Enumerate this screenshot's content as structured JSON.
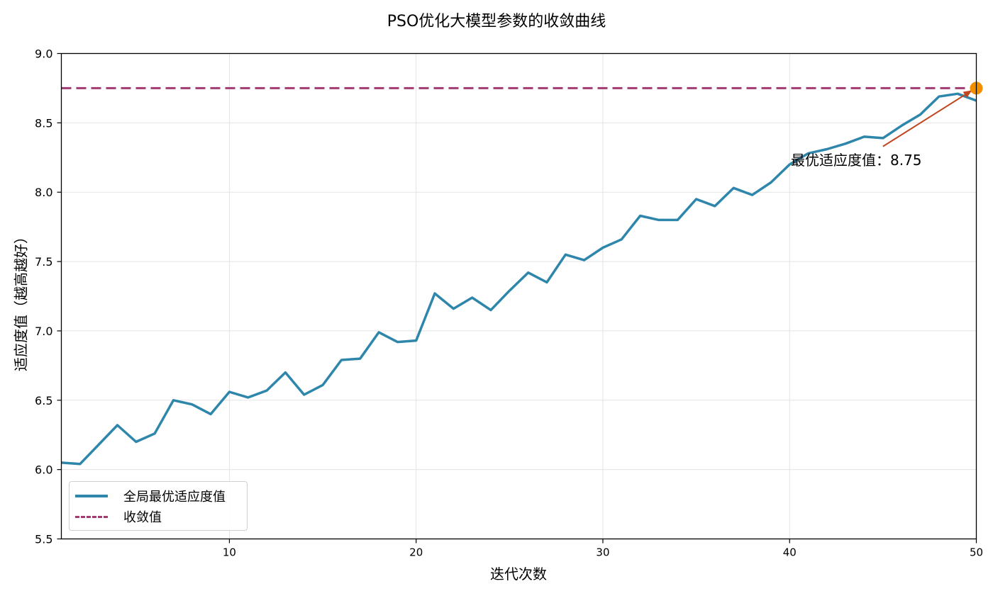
{
  "chart_data": {
    "type": "line",
    "title": "PSO优化大模型参数的收敛曲线",
    "xlabel": "迭代次数",
    "ylabel": "适应度值（越高越好）",
    "xlim": [
      1,
      50
    ],
    "ylim": [
      5.5,
      9.0
    ],
    "xticks": [
      10,
      20,
      30,
      40,
      50
    ],
    "yticks": [
      5.5,
      6.0,
      6.5,
      7.0,
      7.5,
      8.0,
      8.5,
      9.0
    ],
    "ytick_labels": [
      "5.5",
      "6.0",
      "6.5",
      "7.0",
      "7.5",
      "8.0",
      "8.5",
      "9.0"
    ],
    "grid": true,
    "legend_position": "lower left",
    "x": [
      1,
      2,
      3,
      4,
      5,
      6,
      7,
      8,
      9,
      10,
      11,
      12,
      13,
      14,
      15,
      16,
      17,
      18,
      19,
      20,
      21,
      22,
      23,
      24,
      25,
      26,
      27,
      28,
      29,
      30,
      31,
      32,
      33,
      34,
      35,
      36,
      37,
      38,
      39,
      40,
      41,
      42,
      43,
      44,
      45,
      46,
      47,
      48,
      49,
      50
    ],
    "series": [
      {
        "name": "全局最优适应度值",
        "style": "solid",
        "color": "#2e86ab",
        "values": [
          6.05,
          6.04,
          6.18,
          6.32,
          6.2,
          6.26,
          6.5,
          6.47,
          6.4,
          6.56,
          6.52,
          6.57,
          6.7,
          6.54,
          6.61,
          6.79,
          6.8,
          6.99,
          6.92,
          6.93,
          7.27,
          7.16,
          7.24,
          7.15,
          7.29,
          7.42,
          7.35,
          7.55,
          7.51,
          7.6,
          7.66,
          7.83,
          7.8,
          7.8,
          7.95,
          7.9,
          8.03,
          7.98,
          8.07,
          8.2,
          8.28,
          8.31,
          8.35,
          8.4,
          8.39,
          8.48,
          8.56,
          8.69,
          8.71,
          8.66
        ]
      },
      {
        "name": "收敛值",
        "style": "dashed",
        "color": "#a23b72",
        "value": 8.75
      }
    ],
    "annotations": [
      {
        "text": "最优适应度值：8.75",
        "point": [
          50,
          8.75
        ],
        "text_position": [
          45,
          8.22
        ],
        "arrow_color": "#c0461f",
        "marker_color": "#f18f01"
      }
    ]
  },
  "legend": {
    "items": [
      {
        "label": "全局最优适应度值"
      },
      {
        "label": "收敛值"
      }
    ]
  }
}
